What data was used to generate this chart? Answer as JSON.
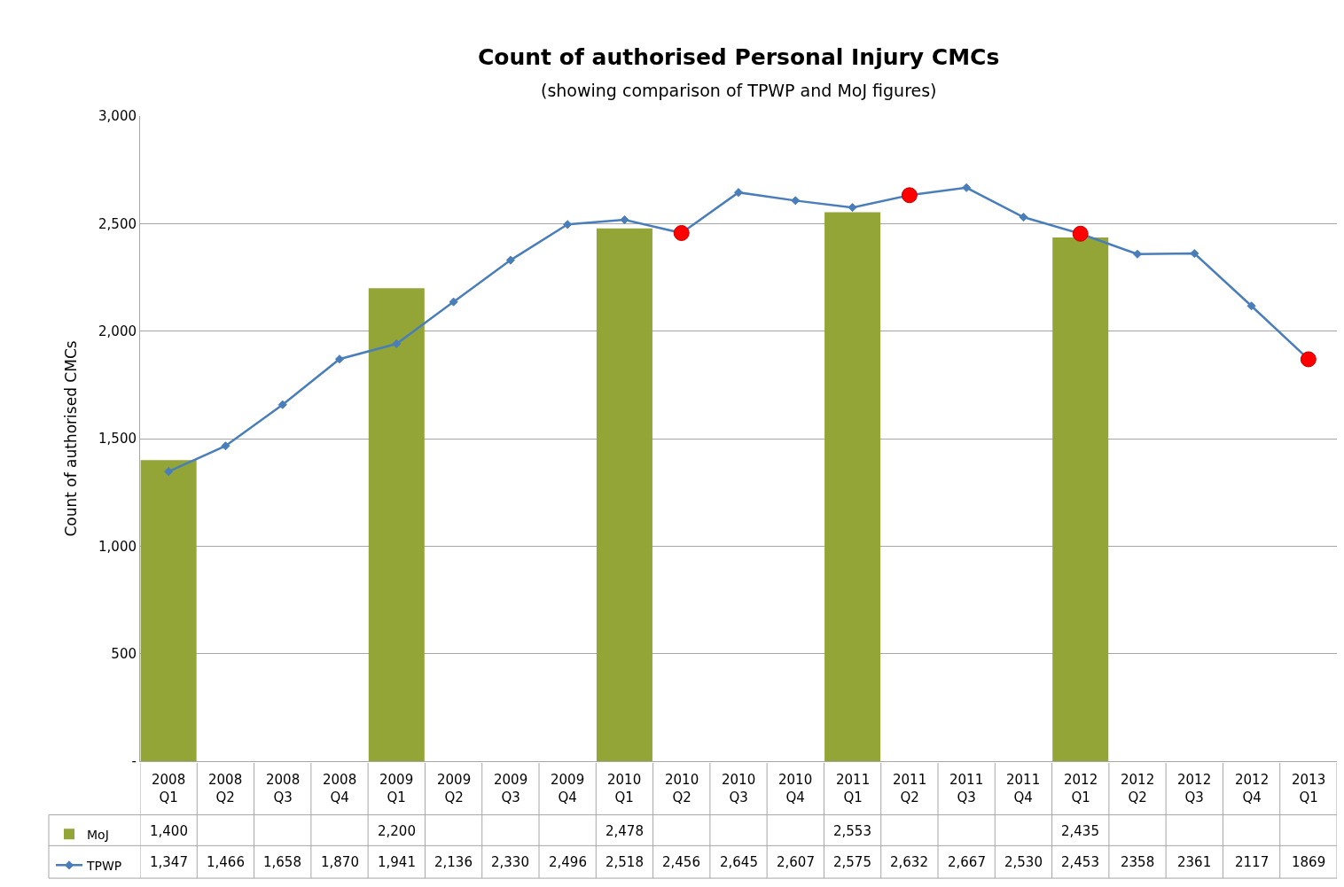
{
  "chart_data": {
    "type": "bar",
    "title": "Count of authorised Personal Injury CMCs",
    "subtitle": "(showing comparison of TPWP and MoJ figures)",
    "ylabel": "Count of authorised CMCs",
    "categories": [
      "2008 Q1",
      "2008 Q2",
      "2008 Q3",
      "2008 Q4",
      "2009 Q1",
      "2009 Q2",
      "2009 Q3",
      "2009 Q4",
      "2010 Q1",
      "2010 Q2",
      "2010 Q3",
      "2010 Q4",
      "2011 Q1",
      "2011 Q2",
      "2011 Q3",
      "2011 Q4",
      "2012 Q1",
      "2012 Q2",
      "2012 Q3",
      "2012 Q4",
      "2013 Q1"
    ],
    "series": [
      {
        "name": "MoJ",
        "color": "#93a536",
        "values": [
          1400,
          null,
          null,
          null,
          2200,
          null,
          null,
          null,
          2478,
          null,
          null,
          null,
          2553,
          null,
          null,
          null,
          2435,
          null,
          null,
          null,
          null
        ],
        "value_labels": [
          "1,400",
          null,
          null,
          null,
          "2,200",
          null,
          null,
          null,
          "2,478",
          null,
          null,
          null,
          "2,553",
          null,
          null,
          null,
          "2,435",
          null,
          null,
          null,
          null
        ]
      },
      {
        "name": "TPWP",
        "type": "line",
        "color": "#4a7ebb",
        "marker": "diamond",
        "values": [
          1347,
          1466,
          1658,
          1870,
          1941,
          2136,
          2330,
          2496,
          2518,
          2456,
          2645,
          2607,
          2575,
          2632,
          2667,
          2530,
          2453,
          2358,
          2361,
          2117,
          1869
        ],
        "value_labels": [
          "1,347",
          "1,466",
          "1,658",
          "1,870",
          "1,941",
          "2,136",
          "2,330",
          "2,496",
          "2,518",
          "2,456",
          "2,645",
          "2,607",
          "2,575",
          "2,632",
          "2,667",
          "2,530",
          "2,453",
          "2358",
          "2361",
          "2117",
          "1869"
        ]
      },
      {
        "type": "scatter",
        "color": "#ff0000",
        "marker": "circle",
        "values": [
          null,
          null,
          null,
          null,
          null,
          null,
          null,
          null,
          null,
          2456,
          null,
          null,
          null,
          2632,
          null,
          null,
          2453,
          null,
          null,
          null,
          1869
        ]
      }
    ],
    "ylim": [
      0,
      3000
    ],
    "yticks": [
      {
        "value": 0,
        "label": "-"
      },
      {
        "value": 500,
        "label": "500"
      },
      {
        "value": 1000,
        "label": "1,000"
      },
      {
        "value": 1500,
        "label": "1,500"
      },
      {
        "value": 2000,
        "label": "2,000"
      },
      {
        "value": 2500,
        "label": "2,500"
      },
      {
        "value": 3000,
        "label": "3,000"
      }
    ],
    "grid": "y",
    "legend": "bottom left"
  }
}
